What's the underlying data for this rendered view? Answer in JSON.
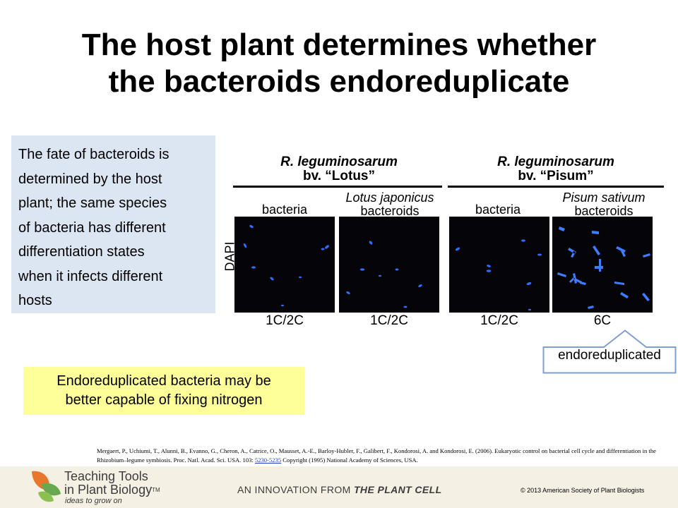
{
  "slide": {
    "title_line1": "The host plant determines whether",
    "title_line2": "the bacteroids endoreduplicate"
  },
  "left_box": {
    "lines": [
      "The fate of bacteroids is",
      "determined by the host",
      "plant; the same species",
      "of bacteria has different",
      "differentiation states",
      "when it infects different",
      "hosts"
    ]
  },
  "figure": {
    "strains": [
      {
        "species": "R. leguminosarum",
        "biovar": "bv. “Lotus”"
      },
      {
        "species": "R. leguminosarum",
        "biovar": "bv. “Pisum”"
      }
    ],
    "panels": [
      {
        "host": "",
        "label": "bacteria",
        "ploidy": "1C/2C"
      },
      {
        "host": "Lotus japonicus",
        "label": "bacteroids",
        "ploidy": "1C/2C"
      },
      {
        "host": "",
        "label": "bacteria",
        "ploidy": "1C/2C"
      },
      {
        "host": "Pisum sativum",
        "label": "bacteroids",
        "ploidy": "6C"
      }
    ],
    "stain_label": "DAPI",
    "colors": {
      "background": "#050509",
      "signal": "#2f6dff"
    }
  },
  "callout": {
    "text": "endoreduplicated",
    "border_color": "#7f9fcf"
  },
  "note": {
    "line1": "Endoreduplicated bacteria may be",
    "line2": "better capable of fixing nitrogen",
    "background": "#ffff99"
  },
  "citation": {
    "text_before_link": "Mergaert, P., Uchiumi, T., Alunni, B., Evanno, G., Cheron, A., Catrice, O., Mausset, A.-E., Barloy-Hubler, F., Galibert, F., Kondorosi, A. and Kondorosi, E. (2006). Eukaryotic control on bacterial cell cycle and differentiation in the Rhizobium–legume symbiosis. Proc. Natl. Acad. Sci. USA. 103: ",
    "link_text": "5230-5235",
    "text_after_link": " Copyright (1995) National Academy of Sciences, USA."
  },
  "footer": {
    "brand_line1": "Teaching Tools",
    "brand_line2": "in Plant Biology",
    "trademark": "TM",
    "tagline": "ideas to grow on",
    "innovation_prefix": "AN INNOVATION FROM ",
    "innovation_journal": "THE PLANT CELL",
    "copyright": "© 2013 American Society of Plant Biologists",
    "colors": {
      "bar": "#f5f0e4",
      "leaf_orange": "#e8762c",
      "leaf_green": "#6aa84f"
    }
  }
}
